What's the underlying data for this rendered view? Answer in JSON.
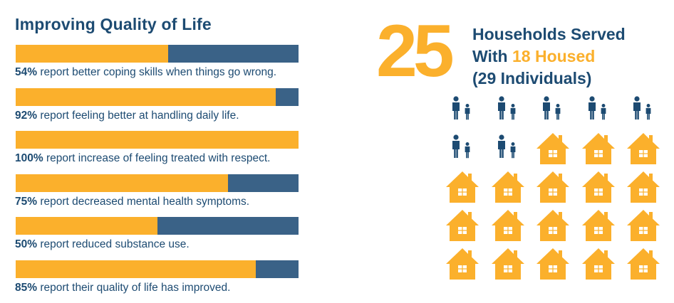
{
  "title": "Improving Quality of Life",
  "colors": {
    "navy": "#1d4b72",
    "bar_remainder": "#3a6287",
    "gold": "#fbb02c"
  },
  "stats": [
    {
      "percent": 54,
      "percent_label": "54%",
      "text": " report better coping skills when things go wrong."
    },
    {
      "percent": 92,
      "percent_label": "92%",
      "text": " report feeling better at handling daily life."
    },
    {
      "percent": 100,
      "percent_label": "100%",
      "text": " report increase of feeling treated with respect."
    },
    {
      "percent": 75,
      "percent_label": "75%",
      "text": " report decreased mental health symptoms."
    },
    {
      "percent": 50,
      "percent_label": "50%",
      "text": " report reduced substance use."
    },
    {
      "percent": 85,
      "percent_label": "85%",
      "text": " report their quality of life has improved."
    }
  ],
  "households": {
    "big_number": "25",
    "line1": "Households Served",
    "line2_prefix": "With ",
    "line2_highlight": "18 Housed",
    "line3": "(29 Individuals)"
  },
  "icons": {
    "people_icon": "family-icon",
    "house_icon": "house-icon",
    "people_count": 7,
    "house_count": 18
  }
}
